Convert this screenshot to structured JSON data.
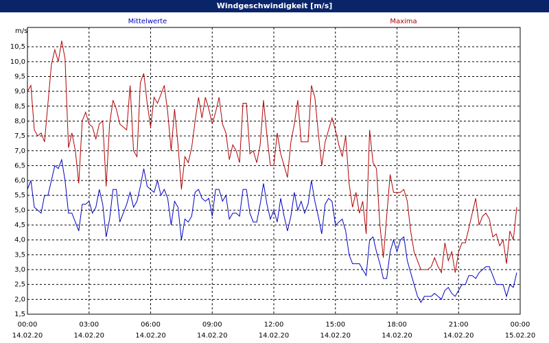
{
  "chart_data": {
    "type": "line",
    "title": "Windgeschwindigkeit [m/s]",
    "y_label": "m/s",
    "xlim": [
      0,
      1440
    ],
    "ylim": [
      1.5,
      11.15
    ],
    "grid": true,
    "xticks": [
      {
        "value": 0,
        "label": "00:00"
      },
      {
        "value": 180,
        "label": "03:00"
      },
      {
        "value": 360,
        "label": "06:00"
      },
      {
        "value": 540,
        "label": "09:00"
      },
      {
        "value": 720,
        "label": "12:00"
      },
      {
        "value": 900,
        "label": "15:00"
      },
      {
        "value": 1080,
        "label": "18:00"
      },
      {
        "value": 1260,
        "label": "21:00"
      },
      {
        "value": 1440,
        "label": "00:00"
      }
    ],
    "xtick_dates": [
      "14.02.20",
      "14.02.20",
      "14.02.20",
      "14.02.20",
      "14.02.20",
      "14.02.20",
      "14.02.20",
      "14.02.20",
      "15.02.20"
    ],
    "yticks": [
      {
        "value": 1.5,
        "label": "1,5"
      },
      {
        "value": 2.0,
        "label": "2,0"
      },
      {
        "value": 2.5,
        "label": "2,5"
      },
      {
        "value": 3.0,
        "label": "3,0"
      },
      {
        "value": 3.5,
        "label": "3,5"
      },
      {
        "value": 4.0,
        "label": "4,0"
      },
      {
        "value": 4.5,
        "label": "4,5"
      },
      {
        "value": 5.0,
        "label": "5,0"
      },
      {
        "value": 5.5,
        "label": "5,5"
      },
      {
        "value": 6.0,
        "label": "6,0"
      },
      {
        "value": 6.5,
        "label": "6,5"
      },
      {
        "value": 7.0,
        "label": "7,0"
      },
      {
        "value": 7.5,
        "label": "7,5"
      },
      {
        "value": 8.0,
        "label": "8,0"
      },
      {
        "value": 8.5,
        "label": "8,5"
      },
      {
        "value": 9.0,
        "label": "9,0"
      },
      {
        "value": 9.5,
        "label": "9,5"
      },
      {
        "value": 10.0,
        "label": "10,0"
      },
      {
        "value": 10.5,
        "label": "10,5"
      }
    ],
    "x": [
      0,
      10,
      20,
      30,
      40,
      50,
      60,
      70,
      80,
      90,
      100,
      110,
      120,
      130,
      140,
      150,
      160,
      170,
      180,
      190,
      200,
      210,
      220,
      230,
      240,
      250,
      260,
      270,
      280,
      290,
      300,
      310,
      320,
      330,
      340,
      350,
      360,
      370,
      380,
      390,
      400,
      410,
      420,
      430,
      440,
      450,
      460,
      470,
      480,
      490,
      500,
      510,
      520,
      530,
      540,
      550,
      560,
      570,
      580,
      590,
      600,
      610,
      620,
      630,
      640,
      650,
      660,
      670,
      680,
      690,
      700,
      710,
      720,
      730,
      740,
      750,
      760,
      770,
      780,
      790,
      800,
      810,
      820,
      830,
      840,
      850,
      860,
      870,
      880,
      890,
      900,
      910,
      920,
      930,
      940,
      950,
      960,
      970,
      980,
      990,
      1000,
      1010,
      1020,
      1030,
      1040,
      1050,
      1060,
      1070,
      1080,
      1090,
      1100,
      1110,
      1120,
      1130,
      1140,
      1150,
      1160,
      1170,
      1180,
      1190,
      1200,
      1210,
      1220,
      1230,
      1240,
      1250,
      1260,
      1270,
      1280,
      1290,
      1300,
      1310,
      1320,
      1330,
      1340,
      1350,
      1360,
      1370,
      1380,
      1390,
      1400,
      1410,
      1420,
      1430
    ],
    "series": [
      {
        "name": "Mittelwerte",
        "color": "#0000c0",
        "values": [
          5.7,
          6.0,
          5.1,
          5.0,
          4.9,
          5.5,
          5.5,
          6.0,
          6.5,
          6.4,
          6.7,
          6.0,
          4.9,
          4.9,
          4.6,
          4.3,
          5.2,
          5.2,
          5.3,
          4.9,
          5.1,
          5.7,
          5.2,
          4.1,
          4.7,
          5.7,
          5.7,
          4.6,
          4.9,
          5.2,
          5.6,
          5.1,
          5.3,
          5.8,
          6.4,
          5.8,
          5.7,
          5.6,
          6.0,
          5.5,
          5.7,
          5.4,
          4.5,
          5.3,
          5.1,
          4.0,
          4.7,
          4.6,
          4.8,
          5.6,
          5.7,
          5.4,
          5.3,
          5.4,
          4.8,
          5.7,
          5.7,
          5.3,
          5.5,
          4.7,
          4.9,
          4.9,
          4.8,
          5.7,
          5.7,
          4.9,
          4.6,
          4.6,
          5.2,
          5.9,
          5.2,
          4.7,
          5.0,
          4.6,
          5.4,
          4.8,
          4.3,
          4.8,
          5.6,
          5.0,
          5.3,
          4.9,
          5.2,
          6.0,
          5.3,
          4.8,
          4.2,
          5.2,
          5.4,
          5.3,
          4.5,
          4.6,
          4.7,
          4.3,
          3.5,
          3.2,
          3.2,
          3.2,
          3.0,
          2.8,
          4.0,
          4.1,
          3.6,
          3.2,
          2.7,
          2.7,
          3.6,
          4.0,
          3.6,
          4.0,
          4.1,
          3.3,
          2.9,
          2.5,
          2.1,
          1.9,
          2.1,
          2.1,
          2.1,
          2.2,
          2.1,
          2.0,
          2.3,
          2.4,
          2.2,
          2.1,
          2.3,
          2.5,
          2.5,
          2.8,
          2.8,
          2.7,
          2.9,
          3.0,
          3.1,
          3.1,
          2.8,
          2.5,
          2.5,
          2.5,
          2.1,
          2.5,
          2.4,
          2.9
        ]
      },
      {
        "name": "Maxima",
        "color": "#b00000",
        "values": [
          9.0,
          9.2,
          7.7,
          7.5,
          7.6,
          7.3,
          8.6,
          9.9,
          10.4,
          10.0,
          10.7,
          10.1,
          7.1,
          7.6,
          7.0,
          5.9,
          8.0,
          8.3,
          7.9,
          7.8,
          7.4,
          7.9,
          8.0,
          5.8,
          7.9,
          8.7,
          8.4,
          7.9,
          7.8,
          7.7,
          9.2,
          7.0,
          6.8,
          9.3,
          9.6,
          8.6,
          7.8,
          8.8,
          8.6,
          8.9,
          9.2,
          8.3,
          7.0,
          8.4,
          7.2,
          5.7,
          6.8,
          6.6,
          7.1,
          8.0,
          8.8,
          8.1,
          8.8,
          8.4,
          7.9,
          8.3,
          8.8,
          7.9,
          7.6,
          6.7,
          7.2,
          7.0,
          6.6,
          8.6,
          8.6,
          6.9,
          7.0,
          6.6,
          7.2,
          8.7,
          7.5,
          6.5,
          6.5,
          7.6,
          6.9,
          6.5,
          6.1,
          7.3,
          7.9,
          8.7,
          7.3,
          7.3,
          7.3,
          9.2,
          8.8,
          7.6,
          6.5,
          7.3,
          7.7,
          8.1,
          7.7,
          7.2,
          6.8,
          7.5,
          5.9,
          5.1,
          5.6,
          4.9,
          5.3,
          4.2,
          7.7,
          6.6,
          6.4,
          4.5,
          3.4,
          4.8,
          6.2,
          5.6,
          5.6,
          5.6,
          5.7,
          5.3,
          4.3,
          3.6,
          3.3,
          3.0,
          3.0,
          3.0,
          3.1,
          3.4,
          3.1,
          2.9,
          3.9,
          3.3,
          3.6,
          2.9,
          3.6,
          3.9,
          3.9,
          4.4,
          4.9,
          5.4,
          4.5,
          4.8,
          4.9,
          4.7,
          4.1,
          4.2,
          3.8,
          4.0,
          3.2,
          4.3,
          4.0,
          5.1
        ]
      }
    ]
  }
}
